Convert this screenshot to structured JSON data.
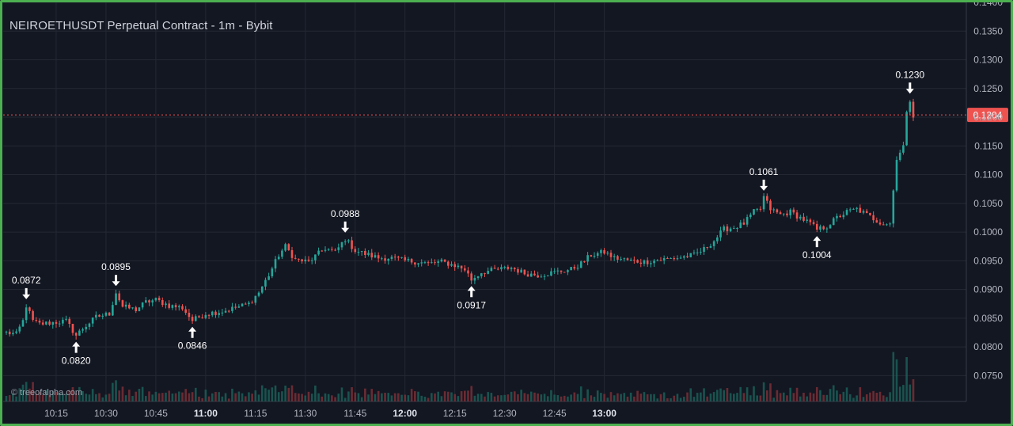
{
  "title": "NEIROETHUSDT Perpetual Contract - 1m - Bybit",
  "watermark": "© treeofalpha.com",
  "colors": {
    "background": "#131722",
    "grid": "#242833",
    "up": "#26a69a",
    "down": "#ef5350",
    "text": "#d1d4dc",
    "axis_text": "#b2b5be",
    "frame": "#4caf50"
  },
  "chart_data": {
    "type": "candlestick",
    "title": "NEIROETHUSDT Perpetual Contract - 1m - Bybit",
    "interval": "1m",
    "exchange": "Bybit",
    "xlabel": "",
    "ylabel": "",
    "grid": true,
    "ylim": [
      0.0705,
      0.14
    ],
    "x_ticks": [
      {
        "label": "10:15",
        "bold": false
      },
      {
        "label": "10:30",
        "bold": false
      },
      {
        "label": "10:45",
        "bold": false
      },
      {
        "label": "11:00",
        "bold": true
      },
      {
        "label": "11:15",
        "bold": false
      },
      {
        "label": "11:30",
        "bold": false
      },
      {
        "label": "11:45",
        "bold": false
      },
      {
        "label": "12:00",
        "bold": true
      },
      {
        "label": "12:15",
        "bold": false
      },
      {
        "label": "12:30",
        "bold": false
      },
      {
        "label": "12:45",
        "bold": false
      },
      {
        "label": "13:00",
        "bold": true
      }
    ],
    "y_ticks": [
      "0.1400",
      "0.1350",
      "0.1300",
      "0.1250",
      "0.1200",
      "0.1150",
      "0.1100",
      "0.1050",
      "0.1000",
      "0.0950",
      "0.0900",
      "0.0850",
      "0.0800",
      "0.0750"
    ],
    "last_price": {
      "label": "0.1204",
      "value": 0.1204
    },
    "annotations": [
      {
        "label": "0.0872",
        "value": 0.0872,
        "position": "high"
      },
      {
        "label": "0.0820",
        "value": 0.082,
        "position": "low"
      },
      {
        "label": "0.0895",
        "value": 0.0895,
        "position": "high"
      },
      {
        "label": "0.0846",
        "value": 0.0846,
        "position": "low"
      },
      {
        "label": "0.0988",
        "value": 0.0988,
        "position": "high"
      },
      {
        "label": "0.0917",
        "value": 0.0917,
        "position": "low"
      },
      {
        "label": "0.1061",
        "value": 0.1061,
        "position": "high"
      },
      {
        "label": "0.1004",
        "value": 0.1004,
        "position": "low"
      },
      {
        "label": "0.1230",
        "value": 0.123,
        "position": "high"
      }
    ],
    "path": [
      [
        0,
        0.0825
      ],
      [
        3,
        0.0822
      ],
      [
        5,
        0.0845
      ],
      [
        6,
        0.0872
      ],
      [
        8,
        0.0845
      ],
      [
        10,
        0.084
      ],
      [
        15,
        0.0843
      ],
      [
        18,
        0.0845
      ],
      [
        21,
        0.082
      ],
      [
        23,
        0.0832
      ],
      [
        27,
        0.0852
      ],
      [
        31,
        0.0858
      ],
      [
        33,
        0.0895
      ],
      [
        35,
        0.087
      ],
      [
        39,
        0.0865
      ],
      [
        42,
        0.0878
      ],
      [
        45,
        0.0882
      ],
      [
        49,
        0.0872
      ],
      [
        53,
        0.0868
      ],
      [
        56,
        0.0846
      ],
      [
        60,
        0.0858
      ],
      [
        65,
        0.0862
      ],
      [
        70,
        0.087
      ],
      [
        73,
        0.0875
      ],
      [
        76,
        0.0895
      ],
      [
        79,
        0.0925
      ],
      [
        82,
        0.096
      ],
      [
        84,
        0.0975
      ],
      [
        87,
        0.0952
      ],
      [
        91,
        0.0948
      ],
      [
        93,
        0.0958
      ],
      [
        96,
        0.0972
      ],
      [
        99,
        0.0965
      ],
      [
        102,
        0.0988
      ],
      [
        105,
        0.0968
      ],
      [
        108,
        0.0962
      ],
      [
        112,
        0.0955
      ],
      [
        116,
        0.0955
      ],
      [
        120,
        0.095
      ],
      [
        124,
        0.0948
      ],
      [
        127,
        0.0945
      ],
      [
        131,
        0.0948
      ],
      [
        135,
        0.0942
      ],
      [
        138,
        0.0935
      ],
      [
        140,
        0.0917
      ],
      [
        143,
        0.093
      ],
      [
        148,
        0.0935
      ],
      [
        152,
        0.0938
      ],
      [
        156,
        0.0928
      ],
      [
        160,
        0.0925
      ],
      [
        165,
        0.093
      ],
      [
        170,
        0.0935
      ],
      [
        173,
        0.0945
      ],
      [
        176,
        0.096
      ],
      [
        180,
        0.0965
      ],
      [
        183,
        0.0955
      ],
      [
        188,
        0.095
      ],
      [
        192,
        0.0948
      ],
      [
        197,
        0.0952
      ],
      [
        202,
        0.0955
      ],
      [
        207,
        0.096
      ],
      [
        210,
        0.097
      ],
      [
        213,
        0.0985
      ],
      [
        216,
        0.1005
      ],
      [
        219,
        0.1008
      ],
      [
        222,
        0.1015
      ],
      [
        225,
        0.1035
      ],
      [
        227,
        0.104
      ],
      [
        228,
        0.1061
      ],
      [
        230,
        0.104
      ],
      [
        233,
        0.103
      ],
      [
        236,
        0.1035
      ],
      [
        239,
        0.1025
      ],
      [
        242,
        0.1015
      ],
      [
        244,
        0.1004
      ],
      [
        247,
        0.101
      ],
      [
        250,
        0.1025
      ],
      [
        253,
        0.1035
      ],
      [
        256,
        0.104
      ],
      [
        259,
        0.103
      ],
      [
        262,
        0.102
      ],
      [
        264,
        0.1015
      ],
      [
        266,
        0.1015
      ],
      [
        268,
        0.113
      ],
      [
        270,
        0.115
      ],
      [
        271,
        0.1205
      ],
      [
        272,
        0.123
      ],
      [
        273,
        0.1204
      ]
    ]
  }
}
